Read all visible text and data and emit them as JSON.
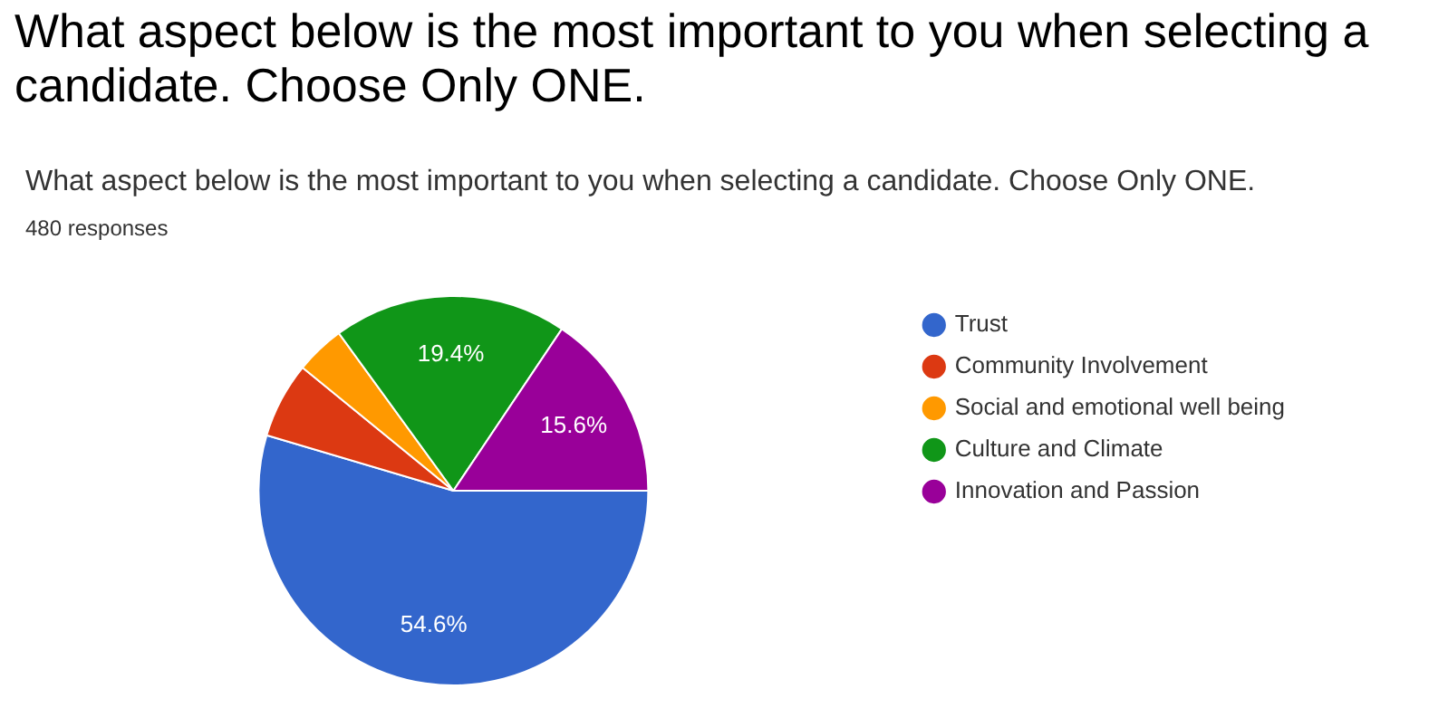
{
  "chart_data": {
    "type": "pie",
    "title": "What aspect below is the most important to you when selecting a candidate.  Choose Only ONE.",
    "subtitle": "What aspect below is the most important to you when selecting a candidate.   Choose Only ONE.",
    "annotations": [
      "480 responses"
    ],
    "categories": [
      "Trust",
      "Community Involvement",
      "Social and emotional well being",
      "Culture and Climate",
      "Innovation and Passion"
    ],
    "values": [
      54.6,
      6.3,
      4.1,
      19.4,
      15.6
    ],
    "colors": [
      "#3366cc",
      "#dc3912",
      "#ff9900",
      "#109618",
      "#990099"
    ],
    "value_labels": [
      "54.6%",
      null,
      null,
      "19.4%",
      "15.6%"
    ],
    "legend": "right"
  }
}
